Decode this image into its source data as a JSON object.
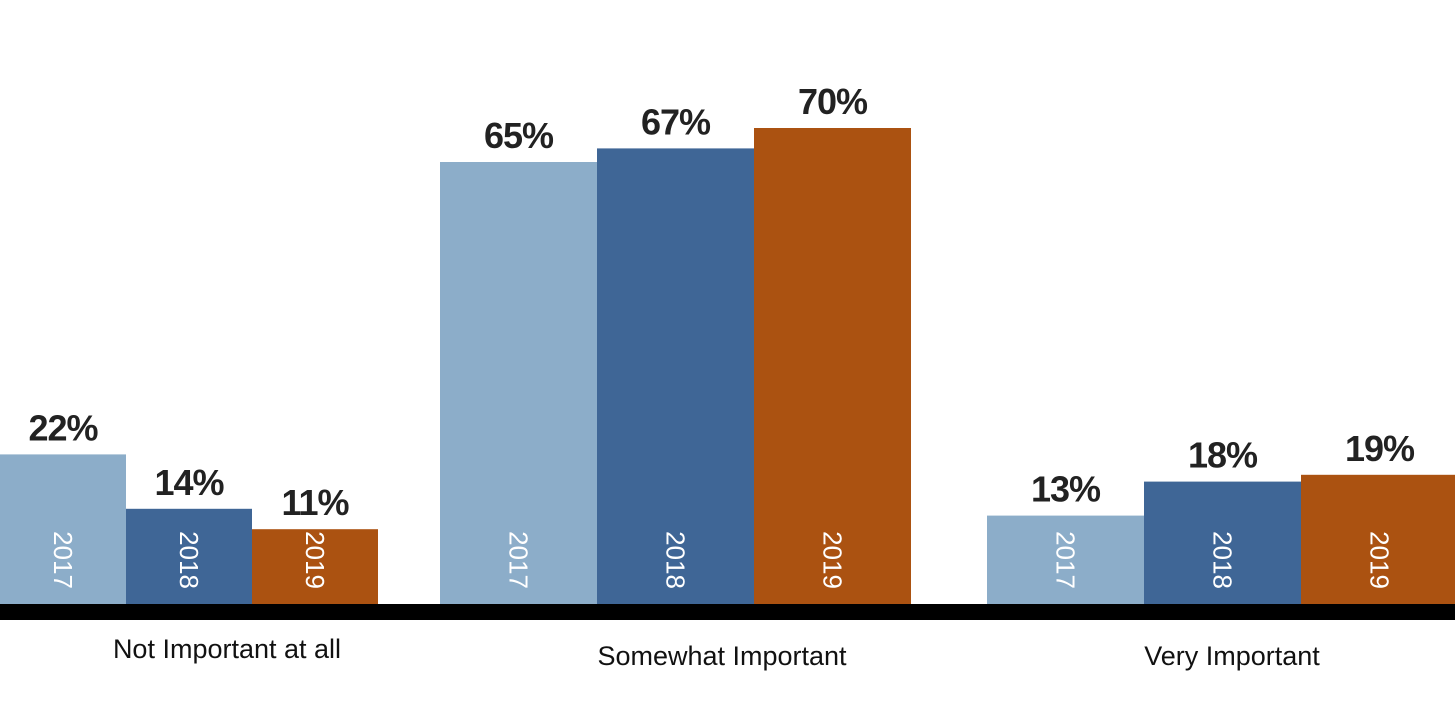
{
  "chart_data": {
    "type": "bar",
    "categories": [
      "Not Important at all",
      "Somewhat Important",
      "Very Important"
    ],
    "series": [
      {
        "name": "2017",
        "values": [
          22,
          65,
          13
        ],
        "color": "#8cadc9"
      },
      {
        "name": "2018",
        "values": [
          14,
          67,
          18
        ],
        "color": "#3f6696"
      },
      {
        "name": "2019",
        "values": [
          11,
          70,
          19
        ],
        "color": "#ab5211"
      }
    ],
    "value_suffix": "%",
    "ylim": [
      0,
      80
    ],
    "grid": false,
    "legend": "none",
    "baseline_color": "#000000",
    "year_labels_inside_bars": true
  }
}
